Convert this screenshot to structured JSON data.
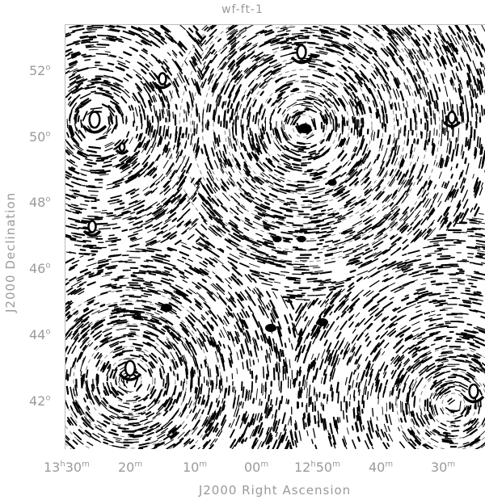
{
  "title": "wf-ft-1",
  "xlabel": "J2000 Right Ascension",
  "ylabel": "J2000 Declination",
  "x_ticks": [
    {
      "h": "13",
      "hs": "h",
      "m": "30",
      "ms": "m"
    },
    {
      "h": "",
      "hs": "",
      "m": "20",
      "ms": "m"
    },
    {
      "h": "",
      "hs": "",
      "m": "10",
      "ms": "m"
    },
    {
      "h": "",
      "hs": "",
      "m": "00",
      "ms": "m"
    },
    {
      "h": "12",
      "hs": "h",
      "m": "50",
      "ms": "m"
    },
    {
      "h": "",
      "hs": "",
      "m": "40",
      "ms": "m"
    },
    {
      "h": "",
      "hs": "",
      "m": "30",
      "ms": "m"
    }
  ],
  "y_ticks": [
    {
      "v": "52",
      "s": "o"
    },
    {
      "v": "50",
      "s": "o"
    },
    {
      "v": "48",
      "s": "o"
    },
    {
      "v": "46",
      "s": "o"
    },
    {
      "v": "44",
      "s": "o"
    },
    {
      "v": "42",
      "s": "o"
    }
  ],
  "colors": {
    "background": "#ffffff",
    "ink": "#000000",
    "label": "#9a9a9a"
  }
}
